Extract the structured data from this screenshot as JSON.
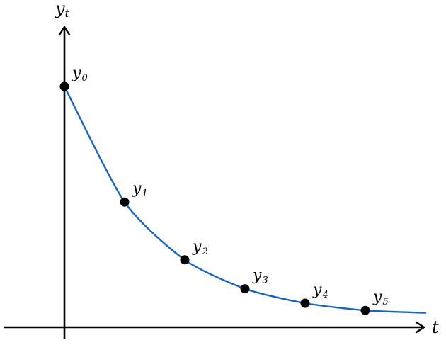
{
  "chart_data": {
    "type": "line",
    "xlabel": "t",
    "ylabel_base": "y",
    "ylabel_sub": "t",
    "series": [
      {
        "color": "#1565c0",
        "points": [
          {
            "t": 0,
            "y": 1.0,
            "label_base": "y",
            "label_sub": "0"
          },
          {
            "t": 1,
            "y": 0.52,
            "label_base": "y",
            "label_sub": "1"
          },
          {
            "t": 2,
            "y": 0.28,
            "label_base": "y",
            "label_sub": "2"
          },
          {
            "t": 3,
            "y": 0.16,
            "label_base": "y",
            "label_sub": "3"
          },
          {
            "t": 4,
            "y": 0.1,
            "label_base": "y",
            "label_sub": "4"
          },
          {
            "t": 5,
            "y": 0.07,
            "label_base": "y",
            "label_sub": "5"
          }
        ],
        "tail_end": {
          "t": 6,
          "y": 0.06
        }
      }
    ],
    "grid": false,
    "legend": "none",
    "ticks": "none"
  }
}
